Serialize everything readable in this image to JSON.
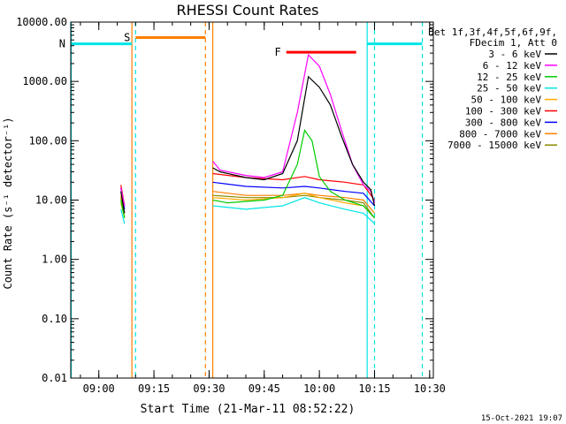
{
  "chart_data": {
    "type": "line",
    "title": "RHESSI Count Rates",
    "xlabel": "Start Time (21-Mar-11 08:52:22)",
    "ylabel": "Count Rate (s⁻¹ detector⁻¹)",
    "yscale": "log",
    "ylim": [
      0.01,
      10000
    ],
    "xlim": [
      "08:52:22",
      "10:31:00"
    ],
    "x_ticks": [
      "09:00",
      "09:15",
      "09:30",
      "09:45",
      "10:00",
      "10:15",
      "10:30"
    ],
    "y_ticks": [
      "0.01",
      "0.10",
      "1.00",
      "10.00",
      "100.00",
      "1000.00",
      "10000.00"
    ],
    "grid": false,
    "legend_position": "top-right",
    "legend_header": [
      "Det 1f,3f,4f,5f,6f,9f,",
      "FDecim 1, Att 0"
    ],
    "timestamp": "15-Oct-2021 19:07",
    "series": [
      {
        "name": "3 - 6 keV",
        "color": "#000000",
        "x": [
          "09:06",
          "09:07",
          "09:31",
          "09:33",
          "09:40",
          "09:45",
          "09:50",
          "09:54",
          "09:57",
          "10:00",
          "10:03",
          "10:06",
          "10:09",
          "10:12",
          "10:14",
          "10:15"
        ],
        "values": [
          14,
          6,
          35,
          30,
          24,
          22,
          28,
          100,
          1200,
          800,
          400,
          120,
          40,
          20,
          15,
          8
        ]
      },
      {
        "name": "6 - 12 keV",
        "color": "#ff00ff",
        "x": [
          "09:06",
          "09:07",
          "09:31",
          "09:33",
          "09:40",
          "09:45",
          "09:50",
          "09:54",
          "09:57",
          "10:00",
          "10:03",
          "10:06",
          "10:09",
          "10:12",
          "10:14",
          "10:15"
        ],
        "values": [
          16,
          8,
          45,
          32,
          26,
          24,
          30,
          300,
          2800,
          1800,
          600,
          150,
          40,
          18,
          14,
          9
        ]
      },
      {
        "name": "12 - 25 keV",
        "color": "#00cc00",
        "x": [
          "09:06",
          "09:07",
          "09:31",
          "09:35",
          "09:45",
          "09:50",
          "09:54",
          "09:56",
          "09:58",
          "10:00",
          "10:03",
          "10:07",
          "10:12",
          "10:15"
        ],
        "values": [
          10,
          5,
          10,
          9,
          10,
          12,
          40,
          150,
          100,
          25,
          14,
          10,
          8,
          5
        ]
      },
      {
        "name": "25 - 50 keV",
        "color": "#00e5e5",
        "x": [
          "09:06",
          "09:07",
          "09:31",
          "09:40",
          "09:50",
          "09:56",
          "10:00",
          "10:07",
          "10:12",
          "10:15"
        ],
        "values": [
          7,
          4,
          8,
          7,
          8,
          11,
          9,
          7,
          6,
          4
        ]
      },
      {
        "name": "50 - 100 keV",
        "color": "#ffaa00",
        "x": [
          "09:06",
          "09:07",
          "09:31",
          "09:40",
          "09:50",
          "09:56",
          "10:00",
          "10:07",
          "10:12",
          "10:15"
        ],
        "values": [
          9,
          5,
          11,
          10,
          11,
          13,
          11,
          9,
          8,
          5
        ]
      },
      {
        "name": "100 - 300 keV",
        "color": "#ff0000",
        "x": [
          "09:06",
          "09:07",
          "09:31",
          "09:40",
          "09:50",
          "09:56",
          "10:00",
          "10:07",
          "10:12",
          "10:15"
        ],
        "values": [
          18,
          8,
          28,
          24,
          22,
          25,
          22,
          20,
          18,
          10
        ]
      },
      {
        "name": "300 - 800 keV",
        "color": "#0000ff",
        "x": [
          "09:06",
          "09:07",
          "09:31",
          "09:40",
          "09:50",
          "09:56",
          "10:00",
          "10:07",
          "10:12",
          "10:15"
        ],
        "values": [
          16,
          7,
          20,
          17,
          16,
          17,
          16,
          14,
          13,
          8
        ]
      },
      {
        "name": "800 - 7000 keV",
        "color": "#ff7f00",
        "x": [
          "09:06",
          "09:07",
          "09:31",
          "09:40",
          "09:50",
          "09:56",
          "10:00",
          "10:07",
          "10:12",
          "10:15"
        ],
        "values": [
          12,
          6,
          14,
          12,
          12,
          13,
          12,
          11,
          10,
          6
        ]
      },
      {
        "name": "7000 - 15000 keV",
        "color": "#8b8b00",
        "x": [
          "09:06",
          "09:07",
          "09:31",
          "09:40",
          "09:50",
          "09:56",
          "10:00",
          "10:07",
          "10:12",
          "10:15"
        ],
        "values": [
          11,
          5,
          12,
          11,
          11,
          12,
          11,
          10,
          9,
          5
        ]
      }
    ],
    "annotations": [
      {
        "label": "S",
        "color": "#ff7f00",
        "x_start": "09:10",
        "x_end": "09:29",
        "y": 5500
      },
      {
        "label": "N",
        "color": "#00e5e5",
        "x_start": "08:52:22",
        "x_end": "09:09",
        "y": 4300
      },
      {
        "label": "",
        "color": "#00e5e5",
        "x_start": "10:13",
        "x_end": "10:28",
        "y": 4300
      },
      {
        "label": "F",
        "color": "#ff0000",
        "x_start": "09:51",
        "x_end": "10:10",
        "y": 3100
      }
    ],
    "vertical_lines": [
      {
        "x": "08:52:30",
        "color": "#00e5e5",
        "style": "solid"
      },
      {
        "x": "09:09",
        "color": "#ff7f00",
        "style": "solid"
      },
      {
        "x": "09:10",
        "color": "#00e5e5",
        "style": "dashed"
      },
      {
        "x": "09:29",
        "color": "#ff7f00",
        "style": "dashed"
      },
      {
        "x": "09:31",
        "color": "#ff7f00",
        "style": "solid"
      },
      {
        "x": "10:13",
        "color": "#00e5e5",
        "style": "solid"
      },
      {
        "x": "10:15",
        "color": "#00e5e5",
        "style": "dashed"
      },
      {
        "x": "10:28",
        "color": "#00e5e5",
        "style": "dashed"
      }
    ]
  }
}
